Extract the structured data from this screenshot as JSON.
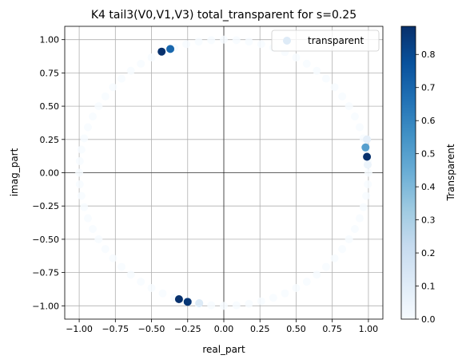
{
  "chart_data": {
    "type": "scatter",
    "title": "K4 tail3(V0,V1,V3) total_transparent for s=0.25",
    "xlabel": "real_part",
    "ylabel": "imag_part",
    "xlim": [
      -1.1,
      1.1
    ],
    "ylim": [
      -1.1,
      1.1
    ],
    "xticks": [
      "−1.00",
      "−0.75",
      "−0.50",
      "−0.25",
      "0.00",
      "0.25",
      "0.50",
      "0.75",
      "1.00"
    ],
    "xtick_values": [
      -1.0,
      -0.75,
      -0.5,
      -0.25,
      0.0,
      0.25,
      0.5,
      0.75,
      1.0
    ],
    "yticks": [
      "−1.00",
      "−0.75",
      "−0.50",
      "−0.25",
      "0.00",
      "0.25",
      "0.50",
      "0.75",
      "1.00"
    ],
    "ytick_values": [
      -1.0,
      -0.75,
      -0.5,
      -0.25,
      0.0,
      0.25,
      0.5,
      0.75,
      1.0
    ],
    "grid": true,
    "reference_lines": {
      "x": 0,
      "y": 0
    },
    "legend": {
      "entries": [
        "transparent"
      ],
      "placement": "top-right"
    },
    "colorbar": {
      "label": "Transparent",
      "colormap": "Blues",
      "range": [
        0.0,
        0.885
      ],
      "ticks": [
        "0.0",
        "0.1",
        "0.2",
        "0.3",
        "0.4",
        "0.5",
        "0.6",
        "0.7",
        "0.8"
      ],
      "tick_values": [
        0.0,
        0.1,
        0.2,
        0.3,
        0.4,
        0.5,
        0.6,
        0.7,
        0.8
      ]
    },
    "background_points": {
      "description_shape": "unit circle",
      "count": 72,
      "value": 0.0
    },
    "highlight_points": [
      {
        "x": -0.43,
        "y": 0.91,
        "value": 0.88
      },
      {
        "x": -0.37,
        "y": 0.93,
        "value": 0.7
      },
      {
        "x": 0.98,
        "y": 0.19,
        "value": 0.5
      },
      {
        "x": 0.99,
        "y": 0.12,
        "value": 0.88
      },
      {
        "x": -0.31,
        "y": -0.95,
        "value": 0.88
      },
      {
        "x": -0.25,
        "y": -0.97,
        "value": 0.86
      },
      {
        "x": -0.17,
        "y": -0.98,
        "value": 0.12
      },
      {
        "x": 0.995,
        "y": 0.06,
        "value": 0.05
      },
      {
        "x": 0.99,
        "y": 0.25,
        "value": 0.08
      }
    ]
  }
}
